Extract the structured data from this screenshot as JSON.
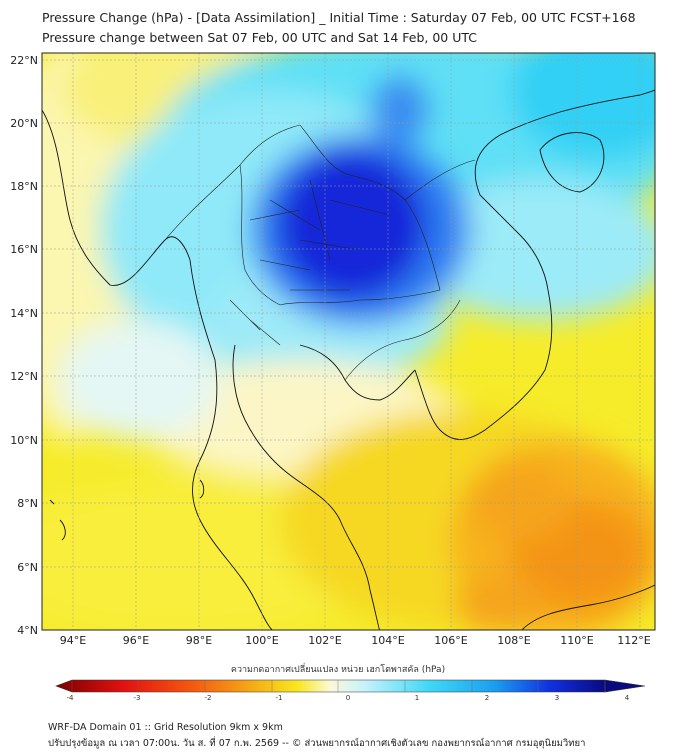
{
  "header": {
    "title": "Pressure Change (hPa) - [Data Assimilation] _ Initial Time : Saturday 07 Feb, 00 UTC FCST+168",
    "subtitle": "Pressure change between Sat 07 Feb, 00 UTC and Sat 14 Feb, 00 UTC"
  },
  "map": {
    "lat_labels": [
      "22°N",
      "20°N",
      "18°N",
      "16°N",
      "14°N",
      "12°N",
      "10°N",
      "8°N",
      "6°N",
      "4°N"
    ],
    "lon_labels": [
      "94°E",
      "96°E",
      "98°E",
      "100°E",
      "102°E",
      "104°E",
      "106°E",
      "108°E",
      "110°E",
      "112°E"
    ],
    "extent": {
      "lon": [
        93,
        112.5
      ],
      "lat": [
        4,
        22.2
      ]
    },
    "colors": {
      "deep_blue": "#1010d8",
      "cyan": "#40d8f5",
      "yellow": "#f8e820",
      "orange": "#f59a15",
      "coast": "#111111"
    }
  },
  "colorbar": {
    "title": "ความกดอากาศเปลี่ยนแปลง หน่วย เฮกโตพาสคัล (hPa)",
    "labels": [
      "-4",
      "-3",
      "-2",
      "-1",
      "0",
      "1",
      "2",
      "3",
      "4"
    ],
    "range": [
      -4,
      4
    ]
  },
  "footer": {
    "line1": "WRF-DA Domain 01 :: Grid Resolution 9km x 9km",
    "line2": "ปรับปรุงข้อมูล ณ เวลา 07:00น. วัน ส. ที่ 07 ก.พ. 2569 -- © ส่วนพยากรณ์อากาศเชิงตัวเลข กองพยากรณ์อากาศ กรมอุตุนิยมวิทยา"
  }
}
